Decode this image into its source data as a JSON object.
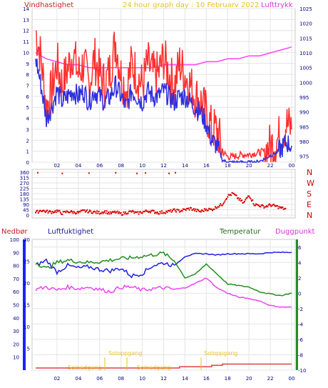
{
  "header": {
    "left_label": "Vindhastighet",
    "title": "24 hour graph day : 10 Februarv 2022",
    "right_label": "Lufttrykk"
  },
  "lower_header": {
    "rain_label": "Nedbør",
    "humidity_label": "Luftfuktighet",
    "temperature_label": "Temperatur",
    "dewpoint_label": "Duggpunkt"
  },
  "annotations": {
    "sunrise_1": "Soloppgang",
    "sunset_1": "Solnedgang",
    "sunrise_2": "Soloppgang",
    "sunset_2": "Solnedgang"
  },
  "colors": {
    "gust": "#ff3030",
    "wind_avg": "#3030e0",
    "pressure": "#ff40ff",
    "direction": "#e00000",
    "humidity": "#2020e0",
    "temperature": "#209020",
    "dewpoint": "#ee44ee",
    "rain": "#e04040",
    "rain_axis": "#2020ff",
    "annotation": "#e8c020",
    "axis_text": "#000080"
  },
  "chart_data": [
    {
      "type": "line",
      "title": "24 hour graph day : 10 Februarv 2022",
      "xlabel": "",
      "ylabel": "Vindhastighet",
      "y2label": "Lufttrykk",
      "xlim": [
        0,
        24
      ],
      "ylim": [
        0,
        14
      ],
      "y2lim": [
        973,
        1025
      ],
      "x_ticks": [
        "02",
        "04",
        "06",
        "08",
        "10",
        "12",
        "14",
        "16",
        "18",
        "20",
        "22",
        "00"
      ],
      "y_ticks": [
        0,
        1,
        2,
        3,
        4,
        5,
        6,
        7,
        8,
        9,
        10,
        11,
        12,
        13,
        14
      ],
      "y2_ticks": [
        975,
        980,
        985,
        990,
        995,
        1000,
        1005,
        1010,
        1015,
        1020,
        1025
      ],
      "series": [
        {
          "name": "Vindhastighet (kast)",
          "x": [
            0,
            0.5,
            1,
            1.5,
            2,
            2.5,
            3,
            3.5,
            4,
            4.5,
            5,
            5.5,
            6,
            6.5,
            7,
            7.5,
            8,
            8.5,
            9,
            9.5,
            10,
            10.5,
            11,
            11.5,
            12,
            12.5,
            13,
            13.5,
            14,
            14.5,
            15,
            15.5,
            16,
            16.5,
            17,
            17.5,
            18,
            18.5,
            19,
            19.5,
            20,
            20.5,
            21,
            21.5,
            22,
            22.5,
            23,
            23.5,
            24
          ],
          "values": [
            12,
            9.5,
            5,
            6.5,
            9,
            7,
            8.5,
            10,
            8,
            9,
            7,
            9.5,
            8,
            7,
            8.5,
            11,
            8,
            6.5,
            9,
            8,
            7,
            9,
            8,
            8,
            9.5,
            8,
            7,
            9,
            8,
            7,
            6,
            5.5,
            4.5,
            3,
            3,
            1,
            0.5,
            0.5,
            0.6,
            0.7,
            0.7,
            0.8,
            0.9,
            1,
            1.5,
            1.8,
            2.5,
            3.5,
            3
          ]
        },
        {
          "name": "Vindhastighet (middel)",
          "x": [
            0,
            0.5,
            1,
            1.5,
            2,
            2.5,
            3,
            3.5,
            4,
            4.5,
            5,
            5.5,
            6,
            6.5,
            7,
            7.5,
            8,
            8.5,
            9,
            9.5,
            10,
            10.5,
            11,
            11.5,
            12,
            12.5,
            13,
            13.5,
            14,
            14.5,
            15,
            15.5,
            16,
            16.5,
            17,
            17.5,
            18,
            18.5,
            19,
            19.5,
            20,
            20.5,
            21,
            21.5,
            22,
            22.5,
            23,
            23.5,
            24
          ],
          "values": [
            9.5,
            7,
            4,
            5,
            6.5,
            5.5,
            6,
            6.5,
            6,
            6.5,
            5.5,
            6.5,
            6,
            5.5,
            6,
            7,
            6,
            5,
            6.5,
            6,
            5.5,
            6.5,
            6,
            6,
            6.5,
            6,
            5.5,
            6,
            6,
            5.5,
            5,
            4.5,
            3.5,
            2,
            1.5,
            0.2,
            0,
            0,
            0,
            0,
            0,
            0,
            0.1,
            0.3,
            0.6,
            0.8,
            1.2,
            1.8,
            1.5
          ]
        },
        {
          "name": "Lufttrykk",
          "axis": "y2",
          "x": [
            0,
            1,
            2,
            3,
            4,
            5,
            6,
            7,
            8,
            9,
            10,
            11,
            12,
            13,
            14,
            15,
            16,
            17,
            18,
            19,
            20,
            21,
            22,
            23,
            24
          ],
          "values": [
            1010,
            1008,
            1007,
            1006,
            1006,
            1005,
            1005,
            1005,
            1005,
            1005,
            1005,
            1005,
            1006,
            1006,
            1006,
            1006,
            1007,
            1007,
            1008,
            1008,
            1009,
            1009,
            1010,
            1011,
            1012
          ]
        }
      ]
    },
    {
      "type": "scatter",
      "title": "",
      "xlim": [
        0,
        24
      ],
      "ylim": [
        0,
        360
      ],
      "y_ticks": [
        0,
        45,
        90,
        135,
        180,
        225,
        270,
        315,
        360
      ],
      "y2_ticks": [
        "N",
        "W",
        "S",
        "E",
        "N"
      ],
      "series": [
        {
          "name": "Vindretning",
          "x": [
            0,
            0.5,
            1,
            1.5,
            2,
            2.5,
            3,
            3.5,
            4,
            4.5,
            5,
            5.5,
            6,
            6.5,
            7,
            7.5,
            8,
            8.5,
            9,
            9.5,
            10,
            10.5,
            11,
            11.5,
            12,
            12.5,
            13,
            13.5,
            14,
            14.5,
            15,
            15.5,
            16,
            16.5,
            17,
            17.5,
            18,
            18.5,
            19,
            19.5,
            20,
            20.5,
            21,
            21.5,
            22,
            22.5,
            23,
            23.5
          ],
          "values": [
            20,
            40,
            30,
            25,
            35,
            15,
            30,
            25,
            20,
            35,
            30,
            25,
            20,
            30,
            15,
            25,
            10,
            20,
            30,
            15,
            25,
            35,
            30,
            20,
            25,
            30,
            40,
            35,
            45,
            55,
            40,
            30,
            50,
            45,
            70,
            90,
            160,
            180,
            140,
            100,
            170,
            90,
            80,
            70,
            85,
            75,
            60,
            50
          ]
        }
      ]
    },
    {
      "type": "line",
      "title": "",
      "xlim": [
        0,
        24
      ],
      "y_left_rain_ticks": [
        10,
        20,
        30,
        40,
        50,
        60,
        70,
        80,
        90,
        100
      ],
      "y_left_humidity_ticks": [
        5,
        10,
        15,
        20,
        25,
        30
      ],
      "y_right_temp_ticks": [
        -10,
        -8,
        -6,
        -4,
        -2,
        0,
        2,
        4,
        6
      ],
      "series": [
        {
          "name": "Luftfuktighet",
          "x": [
            0,
            1,
            2,
            3,
            4,
            5,
            6,
            7,
            8,
            9,
            10,
            11,
            12,
            13,
            14,
            15,
            16,
            17,
            18,
            19,
            20,
            21,
            22,
            23,
            24
          ],
          "values": [
            80,
            84,
            75,
            80,
            78,
            79,
            77,
            76,
            78,
            72,
            74,
            80,
            82,
            80,
            87,
            89,
            89,
            88,
            89,
            89,
            89,
            89,
            90,
            90,
            90
          ]
        },
        {
          "name": "Temperatur",
          "x": [
            0,
            1,
            2,
            3,
            4,
            5,
            6,
            7,
            8,
            9,
            10,
            11,
            12,
            13,
            14,
            15,
            16,
            17,
            18,
            19,
            20,
            21,
            22,
            23,
            24
          ],
          "values": [
            4,
            3.2,
            4,
            4.3,
            4.1,
            4,
            4.1,
            4.3,
            4.5,
            4.6,
            4.8,
            5,
            5.2,
            4.2,
            2,
            2.5,
            3.8,
            2.5,
            1.2,
            1,
            0.8,
            0.2,
            -0.1,
            -0.3,
            0
          ]
        },
        {
          "name": "Duggpunkt",
          "x": [
            0,
            1,
            2,
            3,
            4,
            5,
            6,
            7,
            8,
            9,
            10,
            11,
            12,
            13,
            14,
            15,
            16,
            17,
            18,
            19,
            20,
            21,
            22,
            23,
            24
          ],
          "values": [
            0.5,
            0.8,
            0.4,
            0.8,
            0.6,
            0.8,
            0.5,
            0.2,
            0.8,
            0.8,
            0.4,
            0.6,
            0.7,
            0.5,
            0.7,
            1.3,
            2,
            0.7,
            0,
            -0.5,
            -0.7,
            -1,
            -1.6,
            -1.8,
            -1.8
          ]
        },
        {
          "name": "Nedbør",
          "x": [
            0,
            13.5,
            13.5,
            16.5,
            16.5,
            17.5,
            17.5,
            24
          ],
          "values": [
            0,
            0,
            1,
            1,
            2,
            2,
            3,
            3
          ]
        }
      ]
    }
  ]
}
